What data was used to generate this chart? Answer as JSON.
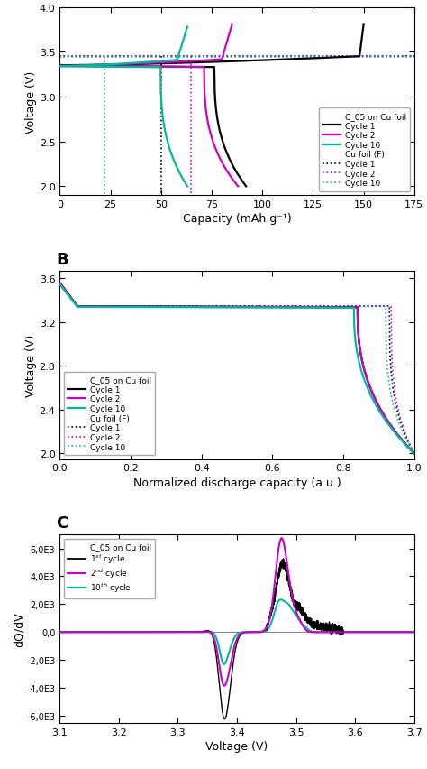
{
  "panel_A": {
    "xlabel": "Capacity (mAh·g⁻¹)",
    "ylabel": "Voltage (V)",
    "xlim": [
      0,
      175
    ],
    "ylim": [
      1.9,
      4.0
    ],
    "yticks": [
      2.0,
      2.5,
      3.0,
      3.5,
      4.0
    ],
    "xticks": [
      0,
      25,
      50,
      75,
      100,
      125,
      150,
      175
    ],
    "solid_colors": [
      "#000000",
      "#cc00cc",
      "#00bb99"
    ],
    "dashed_colors": [
      "#000000",
      "#cc00cc",
      "#00bb99"
    ]
  },
  "panel_B": {
    "xlabel": "Normalized discharge capacity (a.u.)",
    "ylabel": "Voltage (V)",
    "xlim": [
      0,
      1
    ],
    "ylim": [
      1.95,
      3.67
    ],
    "yticks": [
      2.0,
      2.4,
      2.8,
      3.2,
      3.6
    ],
    "xticks": [
      0,
      0.2,
      0.4,
      0.6,
      0.8,
      1.0
    ],
    "solid_colors": [
      "#000000",
      "#cc00cc",
      "#00bb99"
    ],
    "dashed_colors": [
      "#000000",
      "#cc00cc",
      "#00bb99"
    ]
  },
  "panel_C": {
    "xlabel": "Voltage (V)",
    "ylabel": "dQ/dV",
    "xlim": [
      3.1,
      3.7
    ],
    "ylim": [
      -6500,
      7000
    ],
    "yticks": [
      -6000,
      -4000,
      -2000,
      0,
      2000,
      4000,
      6000
    ],
    "ytick_labels": [
      "-6,0E3",
      "-4,0E3",
      "-2,0E3",
      "0,0",
      "2,0E3",
      "4,0E3",
      "6,0E3"
    ],
    "xticks": [
      3.1,
      3.2,
      3.3,
      3.4,
      3.5,
      3.6,
      3.7
    ],
    "colors": [
      "#000000",
      "#cc00cc",
      "#00bb99"
    ]
  }
}
